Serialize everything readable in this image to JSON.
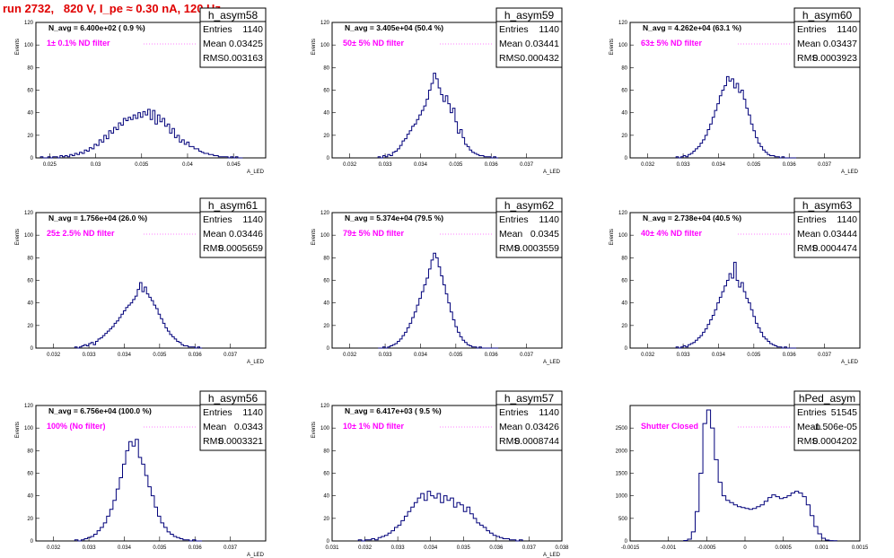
{
  "run_title": "run 2732,   820 V, I_pe ≈ 0.30 nA, 120 Hz",
  "stats_labels": {
    "entries": "Entries",
    "mean": "Mean",
    "rms": "RMS"
  },
  "colors": {
    "histogram": "#00007a",
    "title": "#e00000",
    "annotation": "#ff00ff"
  },
  "chart_data": [
    {
      "type": "histogram",
      "name": "h_asym58",
      "navg": "N_avg = 6.400e+02 ( 0.9 %)",
      "filter": "1± 0.1% ND filter",
      "entries": "1140",
      "mean": "0.03425",
      "rms": "0.003163",
      "xlim": [
        0.0235,
        0.0485
      ],
      "ylim": [
        0,
        120
      ],
      "xticks": [
        0.025,
        0.03,
        0.035,
        0.04,
        0.045
      ],
      "xtick_labels": [
        "0.025",
        "0.03",
        "0.035",
        "0.04",
        "0.045"
      ],
      "yticks": [
        0,
        20,
        40,
        60,
        80,
        100,
        120
      ],
      "xlabel": "A_LED",
      "ylabel": "Events",
      "bin_range": [
        0.024,
        0.046
      ],
      "counts": [
        1,
        0,
        0,
        1,
        0,
        1,
        1,
        0,
        2,
        1,
        2,
        1,
        3,
        2,
        4,
        3,
        5,
        4,
        7,
        6,
        9,
        8,
        12,
        11,
        16,
        14,
        20,
        17,
        24,
        22,
        27,
        25,
        31,
        29,
        35,
        33,
        36,
        34,
        38,
        35,
        40,
        36,
        41,
        38,
        43,
        34,
        42,
        30,
        38,
        32,
        35,
        28,
        30,
        22,
        26,
        18,
        20,
        14,
        16,
        12,
        14,
        10,
        10,
        8,
        8,
        6,
        5,
        4,
        4,
        3,
        3,
        2,
        2,
        1,
        1,
        1,
        1,
        0,
        1,
        0,
        1,
        0,
        0
      ]
    },
    {
      "type": "histogram",
      "name": "h_asym59",
      "navg": "N_avg = 3.405e+04 (50.4 %)",
      "filter": "50± 5% ND filter",
      "entries": "1140",
      "mean": "0.03441",
      "rms": "0.000432",
      "xlim": [
        0.0315,
        0.038
      ],
      "ylim": [
        0,
        120
      ],
      "xticks": [
        0.032,
        0.033,
        0.034,
        0.035,
        0.036,
        0.037
      ],
      "xtick_labels": [
        "0.032",
        "0.033",
        "0.034",
        "0.035",
        "0.036",
        "0.037"
      ],
      "yticks": [
        0,
        20,
        40,
        60,
        80,
        100,
        120
      ],
      "xlabel": "A_LED",
      "ylabel": "Events",
      "bin_range": [
        0.0328,
        0.0362
      ],
      "counts": [
        1,
        0,
        2,
        1,
        3,
        2,
        5,
        6,
        8,
        11,
        15,
        17,
        21,
        24,
        28,
        30,
        34,
        38,
        42,
        46,
        52,
        60,
        66,
        75,
        70,
        62,
        56,
        50,
        55,
        48,
        40,
        44,
        32,
        22,
        25,
        18,
        12,
        10,
        7,
        5,
        4,
        3,
        2,
        2,
        1,
        1,
        1,
        0,
        1,
        0
      ]
    },
    {
      "type": "histogram",
      "name": "h_asym60",
      "navg": "N_avg = 4.262e+04 (63.1 %)",
      "filter": "63± 5% ND filter",
      "entries": "1140",
      "mean": "0.03437",
      "rms": "0.0003923",
      "xlim": [
        0.0315,
        0.038
      ],
      "ylim": [
        0,
        120
      ],
      "xticks": [
        0.032,
        0.033,
        0.034,
        0.035,
        0.036,
        0.037
      ],
      "xtick_labels": [
        "0.032",
        "0.033",
        "0.034",
        "0.035",
        "0.036",
        "0.037"
      ],
      "yticks": [
        0,
        20,
        40,
        60,
        80,
        100,
        120
      ],
      "xlabel": "A_LED",
      "ylabel": "Events",
      "bin_range": [
        0.0328,
        0.0362
      ],
      "counts": [
        1,
        0,
        1,
        2,
        1,
        3,
        4,
        6,
        8,
        10,
        13,
        16,
        20,
        25,
        30,
        36,
        42,
        48,
        55,
        60,
        64,
        72,
        68,
        70,
        62,
        66,
        58,
        60,
        52,
        44,
        38,
        30,
        24,
        18,
        13,
        10,
        7,
        5,
        3,
        2,
        2,
        1,
        1,
        0,
        1,
        0,
        0,
        0,
        0,
        0
      ]
    },
    {
      "type": "histogram",
      "name": "h_asym61",
      "navg": "N_avg = 1.756e+04 (26.0 %)",
      "filter": "25± 2.5% ND filter",
      "entries": "1140",
      "mean": "0.03446",
      "rms": "0.0005659",
      "xlim": [
        0.0315,
        0.038
      ],
      "ylim": [
        0,
        120
      ],
      "xticks": [
        0.032,
        0.033,
        0.034,
        0.035,
        0.036,
        0.037
      ],
      "xtick_labels": [
        "0.032",
        "0.033",
        "0.034",
        "0.035",
        "0.036",
        "0.037"
      ],
      "yticks": [
        0,
        20,
        40,
        60,
        80,
        100,
        120
      ],
      "xlabel": "A_LED",
      "ylabel": "Events",
      "bin_range": [
        0.0326,
        0.0362
      ],
      "counts": [
        1,
        0,
        1,
        2,
        3,
        2,
        4,
        5,
        3,
        6,
        8,
        9,
        11,
        13,
        15,
        17,
        19,
        22,
        24,
        27,
        30,
        33,
        36,
        38,
        40,
        43,
        46,
        52,
        58,
        50,
        54,
        48,
        45,
        42,
        38,
        35,
        30,
        26,
        22,
        18,
        15,
        12,
        10,
        8,
        6,
        5,
        3,
        2,
        2,
        1,
        1,
        1,
        0,
        1,
        0
      ]
    },
    {
      "type": "histogram",
      "name": "h_asym62",
      "navg": "N_avg = 5.374e+04 (79.5 %)",
      "filter": "79± 5% ND filter",
      "entries": "1140",
      "mean": "0.0345",
      "rms": "0.0003559",
      "xlim": [
        0.0315,
        0.038
      ],
      "ylim": [
        0,
        120
      ],
      "xticks": [
        0.032,
        0.033,
        0.034,
        0.035,
        0.036,
        0.037
      ],
      "xtick_labels": [
        "0.032",
        "0.033",
        "0.034",
        "0.035",
        "0.036",
        "0.037"
      ],
      "yticks": [
        0,
        20,
        40,
        60,
        80,
        100,
        120
      ],
      "xlabel": "A_LED",
      "ylabel": "Events",
      "bin_range": [
        0.0328,
        0.0362
      ],
      "counts": [
        0,
        0,
        1,
        0,
        1,
        2,
        3,
        4,
        6,
        8,
        11,
        14,
        18,
        22,
        27,
        32,
        38,
        44,
        50,
        56,
        62,
        70,
        78,
        84,
        80,
        72,
        64,
        56,
        48,
        40,
        32,
        25,
        19,
        14,
        10,
        7,
        5,
        3,
        2,
        1,
        1,
        0,
        1,
        0,
        0,
        0,
        0,
        0,
        0,
        0
      ]
    },
    {
      "type": "histogram",
      "name": "h_asym63",
      "navg": "N_avg = 2.738e+04 (40.5 %)",
      "filter": "40± 4% ND filter",
      "entries": "1140",
      "mean": "0.03444",
      "rms": "0.0004474",
      "xlim": [
        0.0315,
        0.038
      ],
      "ylim": [
        0,
        120
      ],
      "xticks": [
        0.032,
        0.033,
        0.034,
        0.035,
        0.036,
        0.037
      ],
      "xtick_labels": [
        "0.032",
        "0.033",
        "0.034",
        "0.035",
        "0.036",
        "0.037"
      ],
      "yticks": [
        0,
        20,
        40,
        60,
        80,
        100,
        120
      ],
      "xlabel": "A_LED",
      "ylabel": "Events",
      "bin_range": [
        0.0328,
        0.0362
      ],
      "counts": [
        1,
        0,
        1,
        2,
        1,
        3,
        4,
        5,
        7,
        9,
        11,
        14,
        17,
        21,
        25,
        29,
        34,
        40,
        45,
        50,
        55,
        60,
        66,
        62,
        76,
        60,
        54,
        58,
        50,
        44,
        40,
        34,
        28,
        22,
        18,
        14,
        10,
        8,
        6,
        4,
        3,
        2,
        1,
        1,
        0,
        1,
        0,
        0,
        0,
        0
      ]
    },
    {
      "type": "histogram",
      "name": "h_asym56",
      "navg": "N_avg = 6.756e+04 (100.0 %)",
      "filter": "100% (No filter)",
      "entries": "1140",
      "mean": "0.0343",
      "rms": "0.0003321",
      "xlim": [
        0.0315,
        0.038
      ],
      "ylim": [
        0,
        120
      ],
      "xticks": [
        0.032,
        0.033,
        0.034,
        0.035,
        0.036,
        0.037
      ],
      "xtick_labels": [
        "0.032",
        "0.033",
        "0.034",
        "0.035",
        "0.036",
        "0.037"
      ],
      "yticks": [
        0,
        20,
        40,
        60,
        80,
        100,
        120
      ],
      "xlabel": "A_LED",
      "ylabel": "Events",
      "bin_range": [
        0.0326,
        0.0362
      ],
      "counts": [
        1,
        0,
        1,
        2,
        3,
        4,
        6,
        9,
        12,
        16,
        22,
        28,
        36,
        46,
        56,
        68,
        80,
        88,
        84,
        90,
        74,
        68,
        58,
        48,
        40,
        30,
        22,
        16,
        12,
        8,
        6,
        4,
        3,
        2,
        1,
        1,
        0,
        1,
        0,
        0
      ]
    },
    {
      "type": "histogram",
      "name": "h_asym57",
      "navg": "N_avg = 6.417e+03 ( 9.5 %)",
      "filter": "10± 1% ND filter",
      "entries": "1140",
      "mean": "0.03426",
      "rms": "0.0008744",
      "xlim": [
        0.031,
        0.038
      ],
      "ylim": [
        0,
        120
      ],
      "xticks": [
        0.031,
        0.032,
        0.033,
        0.034,
        0.035,
        0.036,
        0.037,
        0.038
      ],
      "xtick_labels": [
        "0.031",
        "0.032",
        "0.033",
        "0.034",
        "0.035",
        "0.036",
        "0.037",
        "0.038"
      ],
      "yticks": [
        0,
        20,
        40,
        60,
        80,
        100,
        120
      ],
      "xlabel": "A_LED",
      "ylabel": "Events",
      "bin_range": [
        0.0318,
        0.0368
      ],
      "counts": [
        1,
        0,
        1,
        1,
        2,
        1,
        3,
        4,
        5,
        7,
        9,
        12,
        14,
        18,
        22,
        26,
        30,
        34,
        38,
        42,
        36,
        44,
        40,
        38,
        42,
        34,
        40,
        36,
        38,
        30,
        34,
        32,
        26,
        30,
        24,
        20,
        16,
        14,
        12,
        9,
        7,
        5,
        4,
        3,
        2,
        2,
        1,
        1,
        0,
        1
      ]
    },
    {
      "type": "histogram",
      "name": "hPed_asym",
      "navg": "",
      "filter": "Shutter Closed",
      "entries": "51545",
      "mean": "-1.506e-05",
      "rms": "0.0004202",
      "xlim": [
        -0.0015,
        0.0015
      ],
      "ylim": [
        0,
        3000
      ],
      "xticks": [
        -0.0015,
        -0.001,
        -0.0005,
        0,
        0.0005,
        0.001,
        0.0015
      ],
      "xtick_labels": [
        "-0.0015",
        "-0.001",
        "-0.0005",
        "0",
        "0.0005",
        "0.001",
        "0.0015"
      ],
      "yticks": [
        0,
        500,
        1000,
        1500,
        2000,
        2500
      ],
      "xlabel": "",
      "ylabel": "",
      "bin_range": [
        -0.0008,
        0.0012
      ],
      "counts": [
        10,
        40,
        200,
        650,
        1500,
        2600,
        2900,
        2500,
        1800,
        1300,
        1000,
        900,
        850,
        800,
        760,
        740,
        720,
        700,
        720,
        760,
        800,
        880,
        960,
        1020,
        980,
        940,
        960,
        1000,
        1060,
        1100,
        1060,
        980,
        800,
        560,
        320,
        160,
        60,
        20,
        8,
        4
      ]
    }
  ]
}
